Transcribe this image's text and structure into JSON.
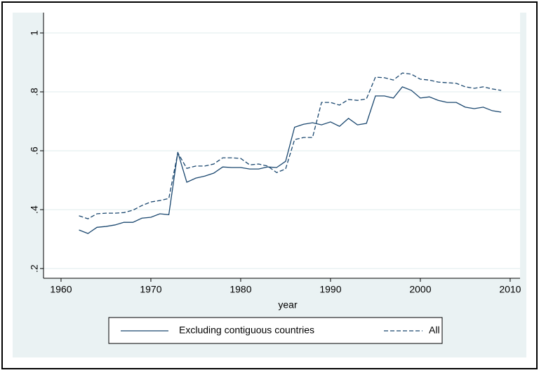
{
  "chart_data": {
    "type": "line",
    "x_label": "year",
    "x": [
      1962,
      1963,
      1964,
      1965,
      1966,
      1967,
      1968,
      1969,
      1970,
      1971,
      1972,
      1973,
      1974,
      1975,
      1976,
      1977,
      1978,
      1979,
      1980,
      1981,
      1982,
      1983,
      1984,
      1985,
      1986,
      1987,
      1988,
      1989,
      1990,
      1991,
      1992,
      1993,
      1994,
      1995,
      1996,
      1997,
      1998,
      1999,
      2000,
      2001,
      2002,
      2003,
      2004,
      2005,
      2006,
      2007,
      2008,
      2009
    ],
    "series": [
      {
        "name": "Excluding contiguous countries",
        "color": "#1a476f",
        "line_style": "solid",
        "values": [
          0.331,
          0.319,
          0.34,
          0.343,
          0.348,
          0.357,
          0.357,
          0.371,
          0.374,
          0.386,
          0.383,
          0.595,
          0.493,
          0.507,
          0.514,
          0.524,
          0.545,
          0.543,
          0.543,
          0.538,
          0.538,
          0.545,
          0.543,
          0.564,
          0.68,
          0.69,
          0.695,
          0.688,
          0.698,
          0.683,
          0.71,
          0.688,
          0.693,
          0.786,
          0.786,
          0.779,
          0.817,
          0.805,
          0.779,
          0.783,
          0.771,
          0.764,
          0.764,
          0.748,
          0.743,
          0.748,
          0.736,
          0.731
        ]
      },
      {
        "name": "All",
        "color": "#1a476f",
        "line_style": "dashed",
        "values": [
          0.379,
          0.369,
          0.386,
          0.388,
          0.388,
          0.39,
          0.398,
          0.414,
          0.426,
          0.431,
          0.438,
          0.593,
          0.54,
          0.548,
          0.548,
          0.555,
          0.576,
          0.576,
          0.574,
          0.552,
          0.555,
          0.548,
          0.526,
          0.538,
          0.638,
          0.645,
          0.645,
          0.764,
          0.764,
          0.755,
          0.774,
          0.771,
          0.776,
          0.85,
          0.848,
          0.84,
          0.864,
          0.86,
          0.843,
          0.84,
          0.833,
          0.831,
          0.829,
          0.817,
          0.812,
          0.817,
          0.81,
          0.805
        ]
      }
    ],
    "xlim": [
      1958.05,
      2011.1
    ],
    "xticks": [
      1960,
      1970,
      1980,
      1990,
      2000,
      2010
    ],
    "ylim": [
      0.167,
      1.069
    ],
    "yticks": [
      {
        "value": 0.2,
        "label": ".2"
      },
      {
        "value": 0.4,
        "label": ".4"
      },
      {
        "value": 0.6,
        "label": ".6"
      },
      {
        "value": 0.8,
        "label": ".8"
      },
      1
    ],
    "grid": true,
    "legend_position": "bottom"
  }
}
